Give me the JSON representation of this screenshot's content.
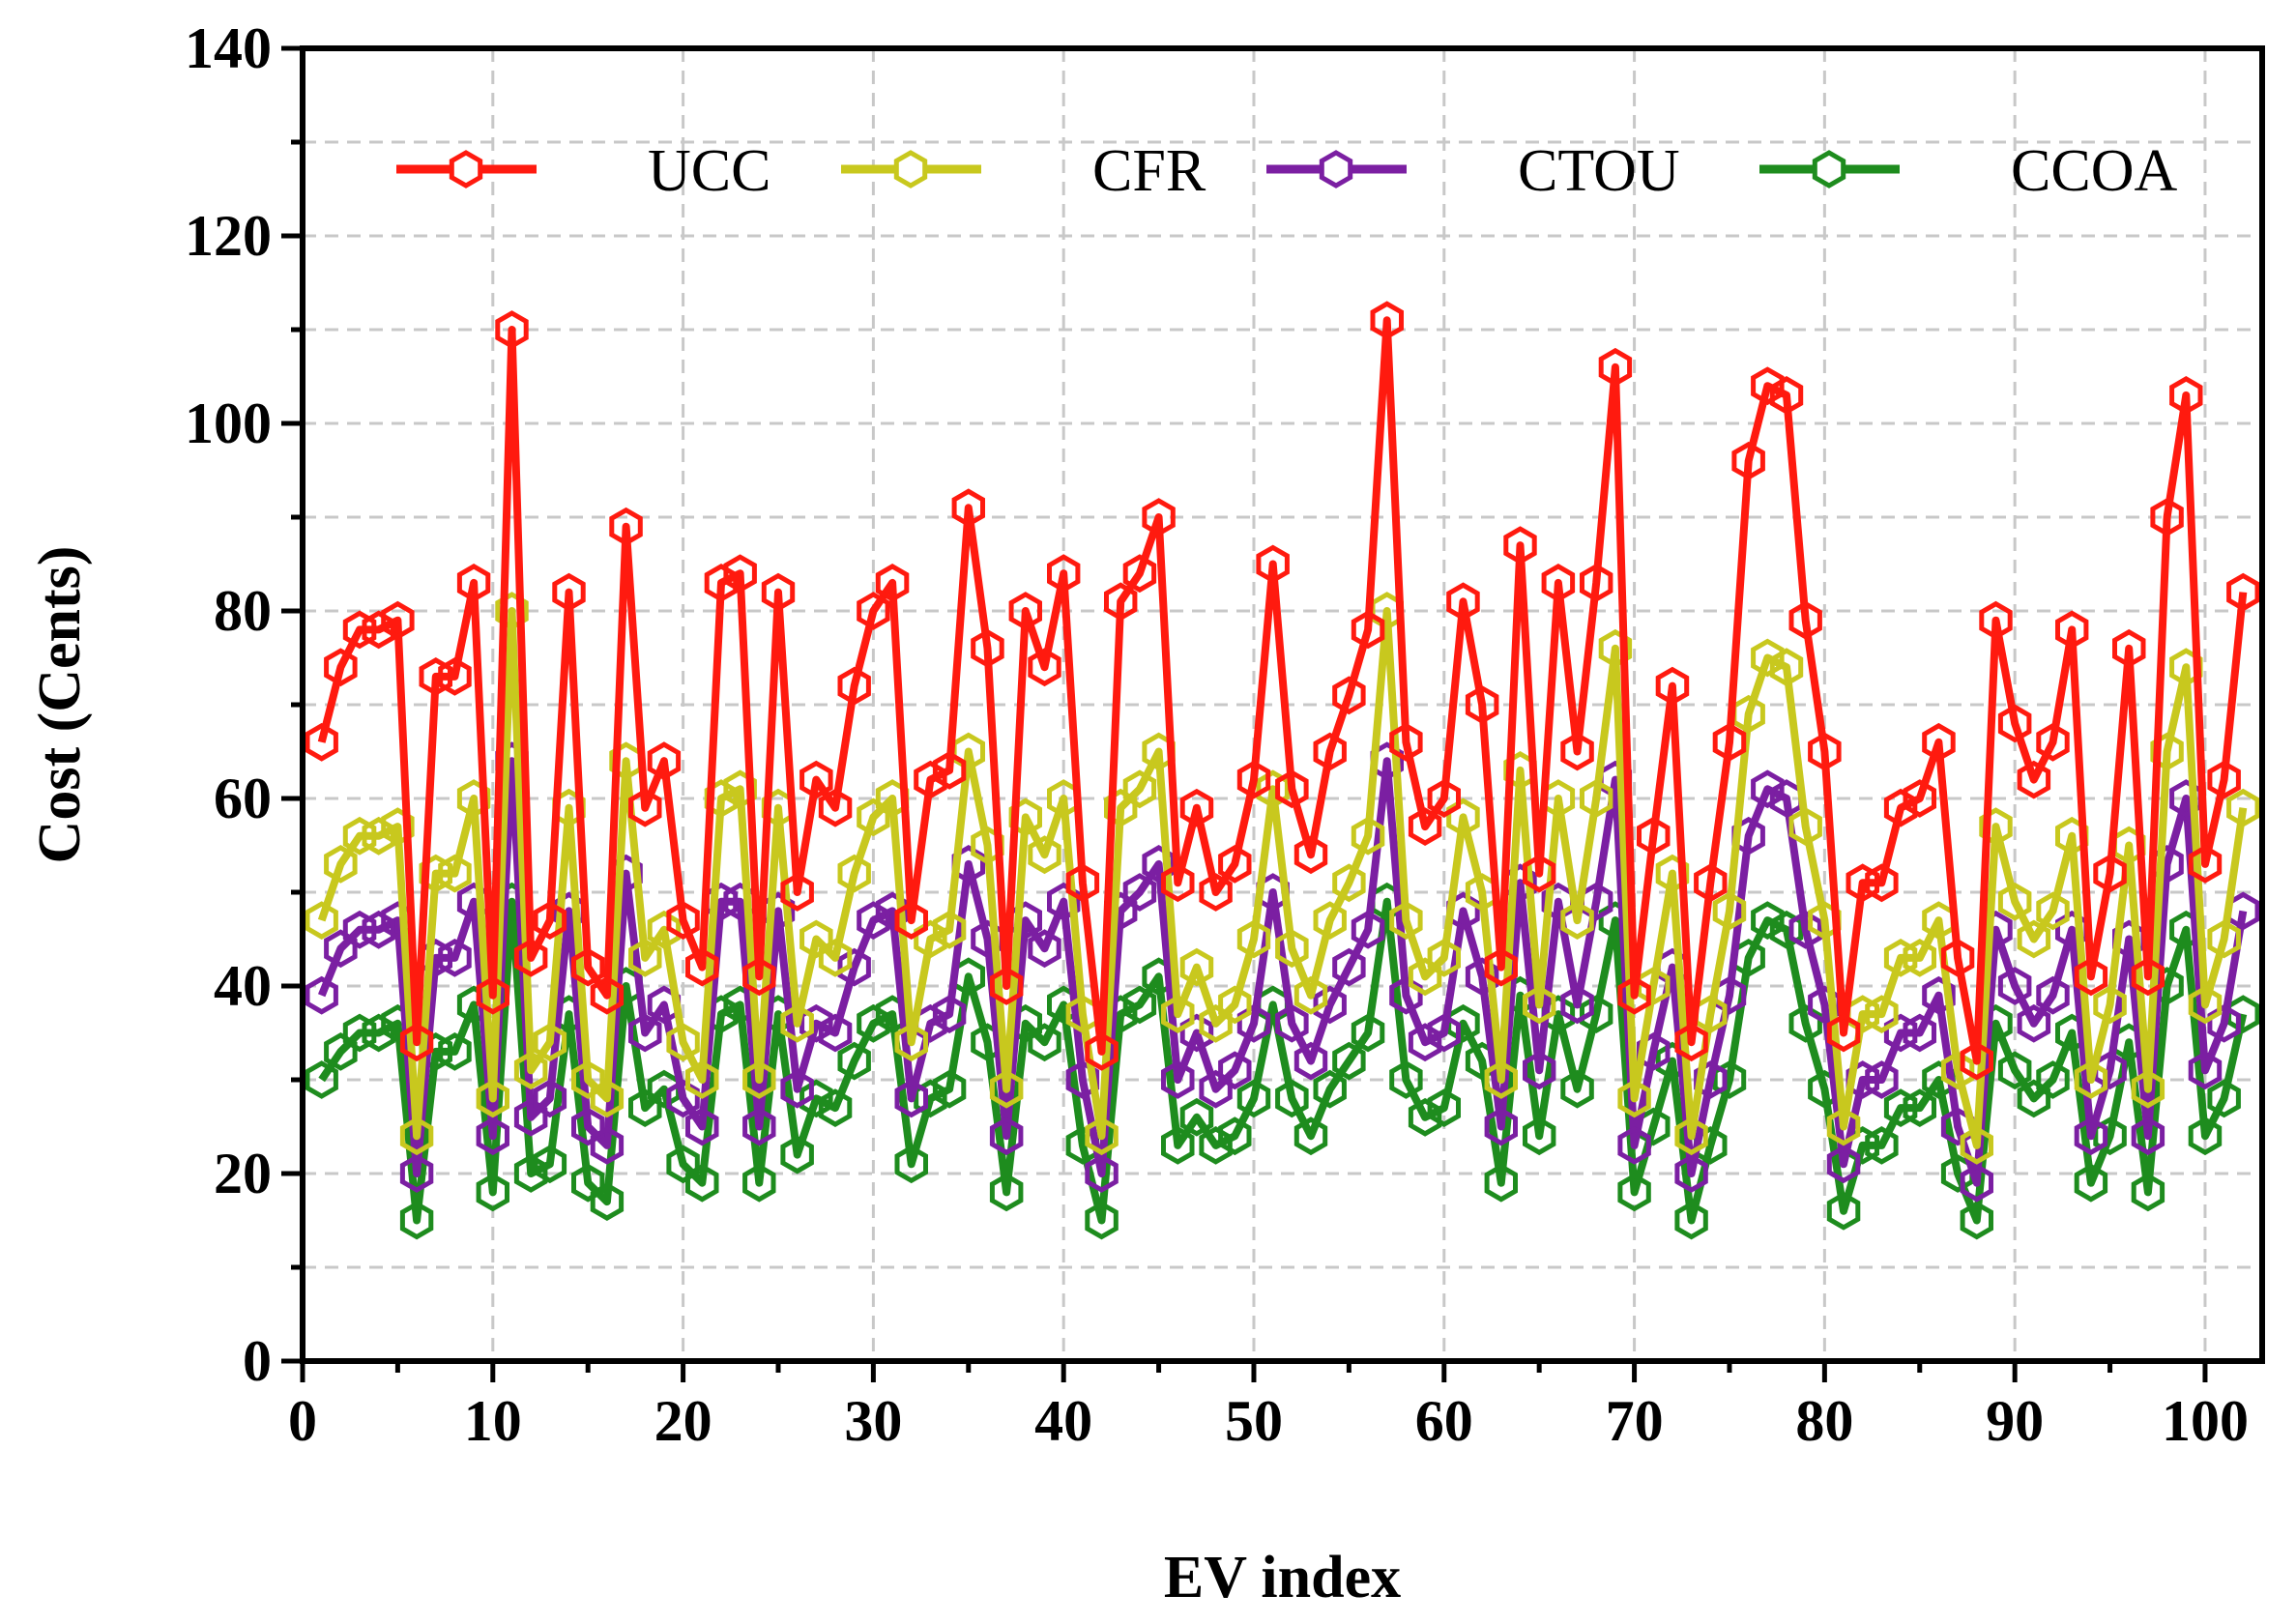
{
  "chart_data": {
    "type": "line",
    "title": "",
    "xlabel": "EV index",
    "ylabel": "Cost (Cents)",
    "xlim": [
      0,
      103
    ],
    "ylim": [
      0,
      140
    ],
    "grid": true,
    "legend_position": "top",
    "x_ticks": [
      0,
      10,
      20,
      30,
      40,
      50,
      60,
      70,
      80,
      90,
      100
    ],
    "y_ticks": [
      0,
      20,
      40,
      60,
      80,
      100,
      120,
      140
    ],
    "x": [
      1,
      2,
      3,
      4,
      5,
      6,
      7,
      8,
      9,
      10,
      11,
      12,
      13,
      14,
      15,
      16,
      17,
      18,
      19,
      20,
      21,
      22,
      23,
      24,
      25,
      26,
      27,
      28,
      29,
      30,
      31,
      32,
      33,
      34,
      35,
      36,
      37,
      38,
      39,
      40,
      41,
      42,
      43,
      44,
      45,
      46,
      47,
      48,
      49,
      50,
      51,
      52,
      53,
      54,
      55,
      56,
      57,
      58,
      59,
      60,
      61,
      62,
      63,
      64,
      65,
      66,
      67,
      68,
      69,
      70,
      71,
      72,
      73,
      74,
      75,
      76,
      77,
      78,
      79,
      80,
      81,
      82,
      83,
      84,
      85,
      86,
      87,
      88,
      89,
      90,
      91,
      92,
      93,
      94,
      95,
      96,
      97,
      98,
      99,
      100,
      101,
      102
    ],
    "series": [
      {
        "name": "UCC",
        "color": "#ff1a0f",
        "values": [
          66,
          74,
          78,
          78,
          79,
          34,
          73,
          73,
          83,
          39,
          110,
          43,
          47,
          82,
          42,
          39,
          89,
          59,
          64,
          47,
          42,
          83,
          84,
          41,
          82,
          50,
          62,
          59,
          72,
          80,
          83,
          47,
          62,
          63,
          91,
          76,
          40,
          80,
          74,
          84,
          51,
          33,
          81,
          84,
          90,
          51,
          59,
          50,
          53,
          62,
          85,
          61,
          54,
          65,
          71,
          78,
          111,
          66,
          57,
          60,
          81,
          70,
          42,
          87,
          52,
          83,
          65,
          83,
          106,
          39,
          56,
          72,
          34,
          51,
          66,
          96,
          104,
          103,
          79,
          65,
          35,
          51,
          51,
          59,
          60,
          66,
          43,
          32,
          79,
          68,
          62,
          66,
          78,
          41,
          52,
          76,
          41,
          90,
          103,
          53,
          62,
          82
        ]
      },
      {
        "name": "CFR",
        "color": "#c8c81e",
        "values": [
          47,
          53,
          56,
          56,
          57,
          24,
          52,
          52,
          60,
          28,
          80,
          31,
          34,
          59,
          30,
          28,
          64,
          43,
          46,
          34,
          30,
          60,
          61,
          30,
          59,
          36,
          45,
          43,
          52,
          58,
          60,
          34,
          45,
          46,
          65,
          55,
          29,
          58,
          54,
          60,
          37,
          24,
          59,
          61,
          65,
          37,
          42,
          36,
          38,
          45,
          61,
          44,
          39,
          47,
          51,
          56,
          80,
          47,
          41,
          43,
          58,
          50,
          30,
          63,
          38,
          60,
          47,
          60,
          76,
          28,
          40,
          52,
          24,
          37,
          48,
          69,
          75,
          74,
          57,
          47,
          25,
          37,
          37,
          43,
          43,
          47,
          31,
          23,
          57,
          49,
          45,
          48,
          56,
          30,
          38,
          55,
          29,
          65,
          74,
          38,
          45,
          59
        ]
      },
      {
        "name": "CTOU",
        "color": "#7b1fa2",
        "values": [
          39,
          44,
          46,
          46,
          47,
          20,
          43,
          43,
          49,
          24,
          64,
          26,
          28,
          48,
          25,
          23,
          52,
          35,
          38,
          28,
          25,
          49,
          49,
          25,
          48,
          29,
          36,
          35,
          42,
          47,
          48,
          28,
          36,
          37,
          53,
          45,
          24,
          47,
          44,
          49,
          30,
          20,
          48,
          50,
          53,
          30,
          35,
          29,
          31,
          36,
          50,
          36,
          32,
          38,
          42,
          46,
          64,
          39,
          34,
          35,
          48,
          41,
          25,
          51,
          31,
          49,
          38,
          49,
          62,
          23,
          33,
          42,
          20,
          30,
          39,
          56,
          61,
          60,
          46,
          38,
          21,
          30,
          30,
          35,
          35,
          39,
          25,
          19,
          46,
          40,
          36,
          39,
          46,
          24,
          31,
          45,
          24,
          53,
          60,
          31,
          36,
          48
        ]
      },
      {
        "name": "CCOA",
        "color": "#1e8c1e",
        "values": [
          30,
          33,
          35,
          35,
          36,
          15,
          33,
          33,
          38,
          18,
          49,
          20,
          21,
          37,
          19,
          17,
          40,
          27,
          29,
          21,
          19,
          37,
          38,
          19,
          37,
          22,
          28,
          27,
          32,
          36,
          37,
          21,
          28,
          29,
          41,
          34,
          18,
          36,
          34,
          38,
          23,
          15,
          37,
          38,
          41,
          23,
          26,
          23,
          24,
          28,
          38,
          28,
          24,
          29,
          32,
          35,
          49,
          30,
          26,
          27,
          36,
          32,
          19,
          39,
          24,
          37,
          29,
          37,
          47,
          18,
          25,
          32,
          15,
          23,
          30,
          43,
          47,
          46,
          36,
          29,
          16,
          23,
          23,
          27,
          27,
          30,
          20,
          15,
          36,
          31,
          28,
          30,
          35,
          19,
          24,
          34,
          18,
          40,
          46,
          24,
          28,
          37
        ]
      }
    ]
  }
}
